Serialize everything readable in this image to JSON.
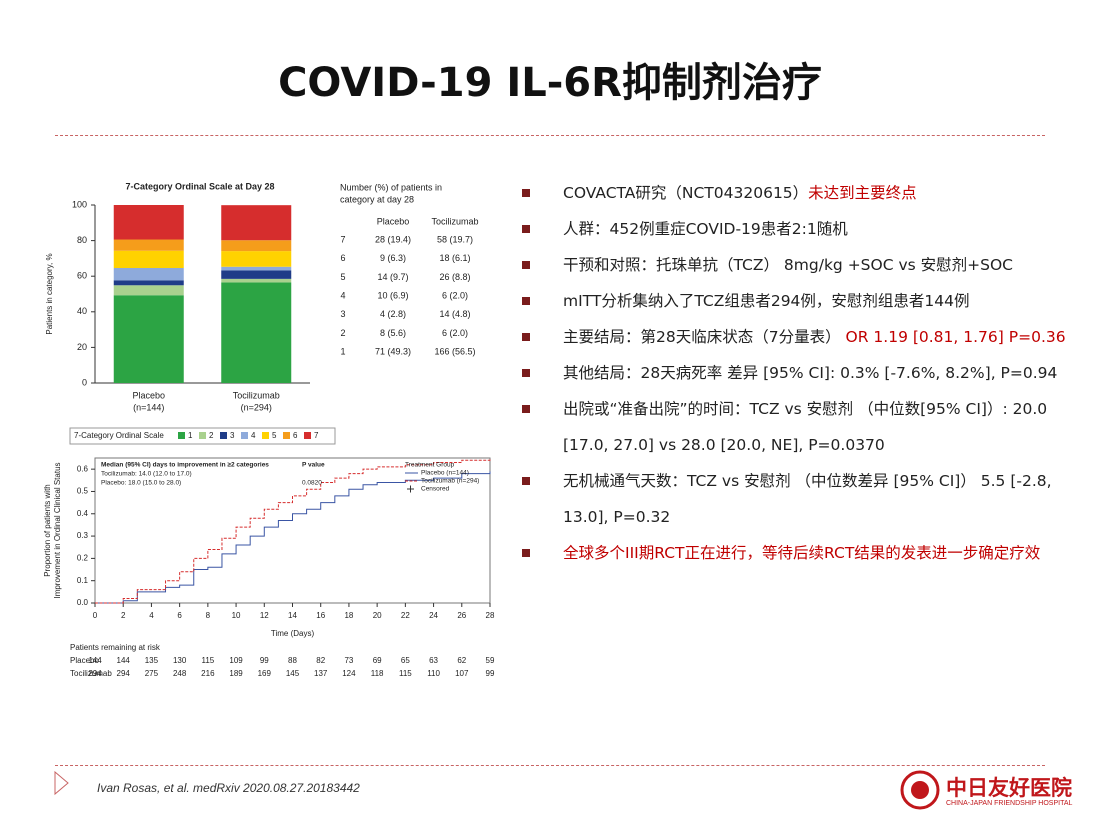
{
  "header": {
    "title": "COVID-19  IL-6R抑制剂治疗"
  },
  "chart_data": [
    {
      "type": "stacked_bar",
      "title": "7-Category Ordinal Scale at Day 28",
      "y_label": "Patients in category, %",
      "categories": [
        "Placebo",
        "Tocilizumab"
      ],
      "category_notes": [
        "(n=144)",
        "(n=294)"
      ],
      "ylim": [
        0,
        100
      ],
      "yticks": [
        0,
        20,
        40,
        60,
        80,
        100
      ],
      "legend_title": "7-Category Ordinal Scale",
      "series": [
        {
          "name": "1",
          "color": "#2ca444",
          "values": [
            49.3,
            56.5
          ]
        },
        {
          "name": "2",
          "color": "#a9d18e",
          "values": [
            5.6,
            2.0
          ]
        },
        {
          "name": "3",
          "color": "#1f3c88",
          "values": [
            2.8,
            4.8
          ]
        },
        {
          "name": "4",
          "color": "#8eaadb",
          "values": [
            6.9,
            2.0
          ]
        },
        {
          "name": "5",
          "color": "#ffd200",
          "values": [
            9.7,
            8.8
          ]
        },
        {
          "name": "6",
          "color": "#f59d1b",
          "values": [
            6.3,
            6.1
          ]
        },
        {
          "name": "7",
          "color": "#d62d2d",
          "values": [
            19.4,
            19.7
          ]
        }
      ],
      "table": {
        "title": [
          "Number (%) of patients in",
          "category at day 28"
        ],
        "columns": [
          "Placebo",
          "Tocilizumab"
        ],
        "rows": [
          {
            "label": "7",
            "cells": [
              "28 (19.4)",
              "58 (19.7)"
            ]
          },
          {
            "label": "6",
            "cells": [
              "9 (6.3)",
              "18 (6.1)"
            ]
          },
          {
            "label": "5",
            "cells": [
              "14 (9.7)",
              "26 (8.8)"
            ]
          },
          {
            "label": "4",
            "cells": [
              "10 (6.9)",
              "6 (2.0)"
            ]
          },
          {
            "label": "3",
            "cells": [
              "4 (2.8)",
              "14 (4.8)"
            ]
          },
          {
            "label": "2",
            "cells": [
              "8 (5.6)",
              "6 (2.0)"
            ]
          },
          {
            "label": "1",
            "cells": [
              "71 (49.3)",
              "166 (56.5)"
            ]
          }
        ]
      }
    },
    {
      "type": "step",
      "x_label": "Time (Days)",
      "y_label": [
        "Proportion of patients with",
        "Improvement in Ordinal Clinical Status"
      ],
      "x": [
        0,
        2,
        3,
        5,
        6,
        7,
        8,
        9,
        10,
        11,
        12,
        13,
        14,
        15,
        16,
        17,
        18,
        19,
        20,
        22,
        24,
        26,
        28
      ],
      "xlim": [
        0,
        28
      ],
      "xticks": [
        0,
        2,
        4,
        6,
        8,
        10,
        12,
        14,
        16,
        18,
        20,
        22,
        24,
        26,
        28
      ],
      "ylim": [
        0,
        0.65
      ],
      "yticks": [
        {
          "value": 0,
          "label": "0.0"
        },
        0.1,
        0.2,
        0.3,
        0.4,
        0.5,
        0.6
      ],
      "legend_title": "Treatment Group",
      "censored_label": "Censored",
      "series": [
        {
          "name": "Placebo (n=144)",
          "color": "#3a55a4",
          "values": [
            0,
            0.01,
            0.05,
            0.07,
            0.08,
            0.15,
            0.16,
            0.22,
            0.26,
            0.3,
            0.34,
            0.37,
            0.4,
            0.42,
            0.45,
            0.48,
            0.51,
            0.53,
            0.54,
            0.55,
            0.56,
            0.58,
            0.59
          ]
        },
        {
          "name": "Tocilizumab (n=294)",
          "color": "#d62d2d",
          "values": [
            0,
            0.02,
            0.06,
            0.1,
            0.14,
            0.2,
            0.24,
            0.29,
            0.34,
            0.38,
            0.42,
            0.45,
            0.48,
            0.51,
            0.54,
            0.56,
            0.58,
            0.6,
            0.61,
            0.62,
            0.63,
            0.64,
            0.65
          ]
        }
      ],
      "inset": {
        "header": "Median (95% CI) days to improvement in ≥2 categories",
        "p_header": "P value",
        "lines": [
          "Tocilizumab: 14.0 (12.0 to 17.0)",
          "Placebo: 18.0 (15.0 to 28.0)"
        ],
        "p_value": "0.0820"
      },
      "risk_table": {
        "title": "Patients remaining at risk",
        "rows": [
          {
            "name": "Placebo",
            "values": [
              144,
              144,
              135,
              130,
              115,
              109,
              99,
              88,
              82,
              73,
              69,
              65,
              63,
              62,
              59
            ]
          },
          {
            "name": "Tocilizumab",
            "values": [
              294,
              294,
              275,
              248,
              216,
              189,
              169,
              145,
              137,
              124,
              118,
              115,
              110,
              107,
              99
            ]
          }
        ]
      }
    }
  ],
  "bullets": [
    {
      "text": "COVACTA研究（NCT04320615）",
      "highlight": "未达到主要终点"
    },
    {
      "text": "人群：452例重症COVID-19患者2:1随机"
    },
    {
      "text": "干预和对照：托珠单抗（TCZ） 8mg/kg +SOC vs 安慰剂+SOC"
    },
    {
      "text": "mITT分析集纳入了TCZ组患者294例，安慰剂组患者144例"
    },
    {
      "text": "主要结局：第28天临床状态（7分量表） ",
      "highlight": "OR 1.19 [0.81, 1.76] P=0.36"
    },
    {
      "text": "其他结局：28天病死率 差异 [95% CI]: 0.3% [-7.6%, 8.2%], P=0.94"
    },
    {
      "text": "出院或“准备出院”的时间：TCZ vs 安慰剂 （中位数[95% CI]）: 20.0 [17.0, 27.0] vs 28.0 [20.0, NE], P=0.0370"
    },
    {
      "text": "无机械通气天数：TCZ vs 安慰剂 （中位数差异 [95% CI]） 5.5 [-2.8, 13.0], P=0.32"
    },
    {
      "highlight": "全球多个III期RCT正在进行，等待后续RCT结果的发表进一步确定疗效"
    }
  ],
  "footer": {
    "citation": "Ivan Rosas, et al. medRxiv 2020.08.27.20183442",
    "logo_name": "中日友好医院",
    "logo_sub": "CHINA-JAPAN FRIENDSHIP HOSPITAL"
  }
}
